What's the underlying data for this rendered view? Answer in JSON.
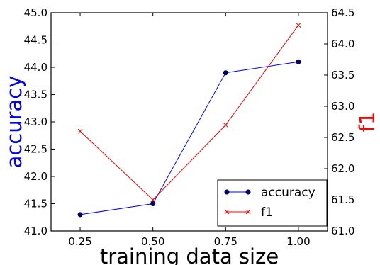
{
  "chart_data": {
    "type": "line",
    "xlabel": "training data size",
    "x": [
      0.25,
      0.5,
      0.75,
      1.0
    ],
    "x_ticks": [
      "0.25",
      "0.50",
      "0.75",
      "1.00"
    ],
    "xlim": [
      0.15,
      1.1
    ],
    "left_axis": {
      "label": "accuracy",
      "label_color": "#0000ff",
      "ylim": [
        41.0,
        45.0
      ],
      "ticks": [
        "41.0",
        "41.5",
        "42.0",
        "42.5",
        "43.0",
        "43.5",
        "44.0",
        "44.5",
        "45.0"
      ]
    },
    "right_axis": {
      "label": "f1",
      "label_color": "#ff0000",
      "ylim": [
        61.0,
        64.5
      ],
      "ticks": [
        "61.0",
        "61.5",
        "62.0",
        "62.5",
        "63.0",
        "63.5",
        "64.0",
        "64.5"
      ]
    },
    "series": [
      {
        "name": "accuracy",
        "axis": "left",
        "color": "#0000ff",
        "marker": "circle",
        "values": [
          41.3,
          41.5,
          43.9,
          44.1
        ]
      },
      {
        "name": "f1",
        "axis": "right",
        "color": "#ff0000",
        "marker": "x",
        "values": [
          62.6,
          61.5,
          62.7,
          64.3
        ]
      }
    ],
    "legend": {
      "position": "lower-right"
    },
    "grid": false
  }
}
